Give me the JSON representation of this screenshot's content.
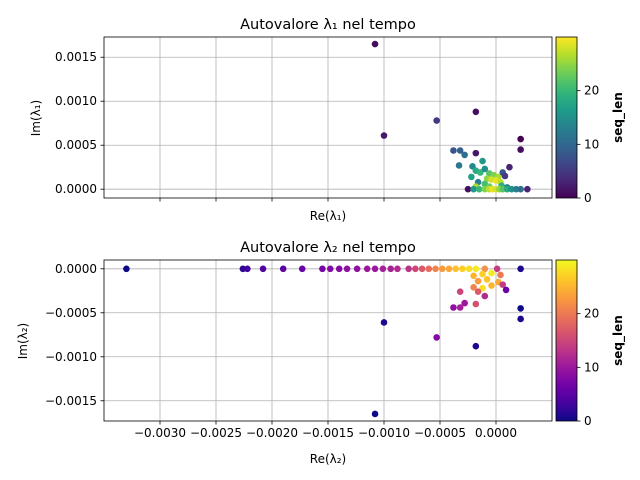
{
  "chart_data": [
    {
      "type": "scatter",
      "title": "Autovalore λ₁ nel tempo",
      "xlabel": "Re(λ₁)",
      "ylabel": "Im(λ₁)",
      "xlim": [
        -0.0035,
        0.0005
      ],
      "ylim": [
        -0.0001,
        0.00173
      ],
      "xticks": [
        -0.003,
        -0.0025,
        -0.002,
        -0.0015,
        -0.001,
        -0.0005,
        0.0
      ],
      "xtick_labels": [],
      "yticks": [
        0.0,
        0.0005,
        0.001,
        0.0015
      ],
      "ytick_labels": [
        "0.0000",
        "0.0005",
        "0.0010",
        "0.0015"
      ],
      "grid": true,
      "colormap": "viridis",
      "colorbar": {
        "label": "seq_len",
        "min": 0,
        "max": 30,
        "ticks": [
          0,
          10,
          20
        ],
        "tick_labels": [
          "0",
          "10",
          "20"
        ]
      },
      "points": [
        {
          "x": -0.00108,
          "y": 0.00165,
          "c": 1
        },
        {
          "x": -0.001,
          "y": 0.00061,
          "c": 2
        },
        {
          "x": -0.00053,
          "y": 0.00078,
          "c": 5
        },
        {
          "x": -0.00018,
          "y": 0.00088,
          "c": 1
        },
        {
          "x": 0.00022,
          "y": 0.00057,
          "c": 0
        },
        {
          "x": 0.00022,
          "y": 0.00045,
          "c": 1
        },
        {
          "x": -0.00038,
          "y": 0.00044,
          "c": 8
        },
        {
          "x": -0.00032,
          "y": 0.00044,
          "c": 9
        },
        {
          "x": -0.00028,
          "y": 0.00039,
          "c": 11
        },
        {
          "x": -0.00018,
          "y": 0.00041,
          "c": 2
        },
        {
          "x": 0.00012,
          "y": 0.00025,
          "c": 3
        },
        {
          "x": -0.00033,
          "y": 0.00027,
          "c": 12
        },
        {
          "x": -0.00021,
          "y": 0.00026,
          "c": 14
        },
        {
          "x": -0.00012,
          "y": 0.00032,
          "c": 16
        },
        {
          "x": -0.00018,
          "y": 0.00021,
          "c": 18
        },
        {
          "x": -0.00014,
          "y": 0.00019,
          "c": 20
        },
        {
          "x": -0.0001,
          "y": 0.00023,
          "c": 15
        },
        {
          "x": -6e-05,
          "y": 0.00018,
          "c": 22
        },
        {
          "x": -2e-05,
          "y": 0.00016,
          "c": 24
        },
        {
          "x": 2e-05,
          "y": 0.00014,
          "c": 26
        },
        {
          "x": 6e-05,
          "y": 0.00019,
          "c": 8
        },
        {
          "x": 8e-05,
          "y": 0.00015,
          "c": 5
        },
        {
          "x": -0.00022,
          "y": 0.00014,
          "c": 17
        },
        {
          "x": -8e-05,
          "y": 0.00012,
          "c": 25
        },
        {
          "x": -4e-05,
          "y": 0.00011,
          "c": 28
        },
        {
          "x": 0.0,
          "y": 0.0001,
          "c": 29
        },
        {
          "x": 4e-05,
          "y": 8e-05,
          "c": 27
        },
        {
          "x": -0.00016,
          "y": 8e-05,
          "c": 13
        },
        {
          "x": -0.0001,
          "y": 6e-05,
          "c": 21
        },
        {
          "x": -0.00018,
          "y": 3e-05,
          "c": 26
        },
        {
          "x": -6e-05,
          "y": 3e-05,
          "c": 23
        },
        {
          "x": 5e-05,
          "y": 4e-05,
          "c": 19
        },
        {
          "x": 0.0001,
          "y": 2e-05,
          "c": 12
        },
        {
          "x": -0.00025,
          "y": 0.0,
          "c": 1
        },
        {
          "x": -0.0002,
          "y": 0.0,
          "c": 16
        },
        {
          "x": -0.00015,
          "y": 0.0,
          "c": 20
        },
        {
          "x": -0.0001,
          "y": 0.0,
          "c": 24
        },
        {
          "x": -6e-05,
          "y": 0.0,
          "c": 27
        },
        {
          "x": -3e-05,
          "y": 0.0,
          "c": 29
        },
        {
          "x": 0.0,
          "y": 0.0,
          "c": 28
        },
        {
          "x": 3e-05,
          "y": 0.0,
          "c": 25
        },
        {
          "x": 6e-05,
          "y": 0.0,
          "c": 22
        },
        {
          "x": 0.0001,
          "y": 0.0,
          "c": 18
        },
        {
          "x": 0.00014,
          "y": 0.0,
          "c": 15
        },
        {
          "x": 0.00018,
          "y": 0.0,
          "c": 13
        },
        {
          "x": 0.00022,
          "y": 0.0,
          "c": 11
        },
        {
          "x": 0.00028,
          "y": 0.0,
          "c": 3
        }
      ]
    },
    {
      "type": "scatter",
      "title": "Autovalore λ₂ nel tempo",
      "xlabel": "Re(λ₂)",
      "ylabel": "Im(λ₂)",
      "xlim": [
        -0.0035,
        0.0005
      ],
      "ylim": [
        -0.00173,
        0.0001
      ],
      "xticks": [
        -0.003,
        -0.0025,
        -0.002,
        -0.0015,
        -0.001,
        -0.0005,
        0.0
      ],
      "xtick_labels": [
        "−0.0030",
        "−0.0025",
        "−0.0020",
        "−0.0015",
        "−0.0010",
        "−0.0005",
        "0.0000"
      ],
      "yticks": [
        0.0,
        -0.0005,
        -0.001,
        -0.0015
      ],
      "ytick_labels": [
        "0.0000",
        "−0.0005",
        "−0.0010",
        "−0.0015"
      ],
      "grid": true,
      "colormap": "plasma",
      "colorbar": {
        "label": "seq_len",
        "min": 0,
        "max": 30,
        "ticks": [
          0,
          10,
          20
        ],
        "tick_labels": [
          "0",
          "10",
          "20"
        ]
      },
      "points": [
        {
          "x": -0.0033,
          "y": 0.0,
          "c": 0
        },
        {
          "x": -0.00226,
          "y": 0.0,
          "c": 2
        },
        {
          "x": -0.00222,
          "y": 0.0,
          "c": 3
        },
        {
          "x": -0.00208,
          "y": 0.0,
          "c": 4
        },
        {
          "x": -0.0019,
          "y": 0.0,
          "c": 5
        },
        {
          "x": -0.00173,
          "y": 0.0,
          "c": 6
        },
        {
          "x": -0.00155,
          "y": 0.0,
          "c": 7
        },
        {
          "x": -0.00148,
          "y": 0.0,
          "c": 8
        },
        {
          "x": -0.0014,
          "y": 0.0,
          "c": 8
        },
        {
          "x": -0.00133,
          "y": 0.0,
          "c": 9
        },
        {
          "x": -0.00124,
          "y": 0.0,
          "c": 9
        },
        {
          "x": -0.00115,
          "y": 0.0,
          "c": 10
        },
        {
          "x": -0.00108,
          "y": 0.0,
          "c": 10
        },
        {
          "x": -0.00101,
          "y": 0.0,
          "c": 11
        },
        {
          "x": -0.00094,
          "y": 0.0,
          "c": 11
        },
        {
          "x": -0.00088,
          "y": 0.0,
          "c": 12
        },
        {
          "x": -0.00078,
          "y": 0.0,
          "c": 13
        },
        {
          "x": -0.00072,
          "y": 0.0,
          "c": 15
        },
        {
          "x": -0.00066,
          "y": 0.0,
          "c": 17
        },
        {
          "x": -0.0006,
          "y": 0.0,
          "c": 19
        },
        {
          "x": -0.00054,
          "y": 0.0,
          "c": 21
        },
        {
          "x": -0.00048,
          "y": 0.0,
          "c": 23
        },
        {
          "x": -0.00042,
          "y": 0.0,
          "c": 24
        },
        {
          "x": -0.00036,
          "y": 0.0,
          "c": 26
        },
        {
          "x": -0.0003,
          "y": 0.0,
          "c": 27
        },
        {
          "x": -0.00024,
          "y": 0.0,
          "c": 28
        },
        {
          "x": -0.00018,
          "y": 0.0,
          "c": 29
        },
        {
          "x": -0.0001,
          "y": 0.0,
          "c": 22
        },
        {
          "x": 1e-05,
          "y": 0.0,
          "c": 14
        },
        {
          "x": 0.00022,
          "y": 0.0,
          "c": 1
        },
        {
          "x": -0.0002,
          "y": -8e-05,
          "c": 25
        },
        {
          "x": -0.00012,
          "y": -6e-05,
          "c": 27
        },
        {
          "x": -4e-05,
          "y": -5e-05,
          "c": 29
        },
        {
          "x": 4e-05,
          "y": -7e-05,
          "c": 20
        },
        {
          "x": -0.00016,
          "y": -0.00014,
          "c": 23
        },
        {
          "x": -8e-05,
          "y": -0.00012,
          "c": 26
        },
        {
          "x": 2e-05,
          "y": -0.00015,
          "c": 24
        },
        {
          "x": 6e-05,
          "y": -0.00018,
          "c": 14
        },
        {
          "x": -0.0002,
          "y": -0.00021,
          "c": 21
        },
        {
          "x": -0.00012,
          "y": -0.00022,
          "c": 28
        },
        {
          "x": -4e-05,
          "y": -0.00019,
          "c": 25
        },
        {
          "x": 9e-05,
          "y": -0.00024,
          "c": 6
        },
        {
          "x": -0.00016,
          "y": -0.00026,
          "c": 17
        },
        {
          "x": -0.0001,
          "y": -0.00031,
          "c": 12
        },
        {
          "x": -0.00032,
          "y": -0.00026,
          "c": 15
        },
        {
          "x": -0.00028,
          "y": -0.00039,
          "c": 10
        },
        {
          "x": -0.00038,
          "y": -0.00044,
          "c": 9
        },
        {
          "x": -0.00032,
          "y": -0.00044,
          "c": 11
        },
        {
          "x": -0.00018,
          "y": -0.0004,
          "c": 16
        },
        {
          "x": 0.00022,
          "y": -0.00045,
          "c": 0
        },
        {
          "x": 0.00022,
          "y": -0.00057,
          "c": 1
        },
        {
          "x": -0.001,
          "y": -0.00061,
          "c": 1
        },
        {
          "x": -0.00053,
          "y": -0.00078,
          "c": 8
        },
        {
          "x": -0.00018,
          "y": -0.00088,
          "c": 1
        },
        {
          "x": -0.00108,
          "y": -0.00165,
          "c": 0
        }
      ]
    }
  ]
}
